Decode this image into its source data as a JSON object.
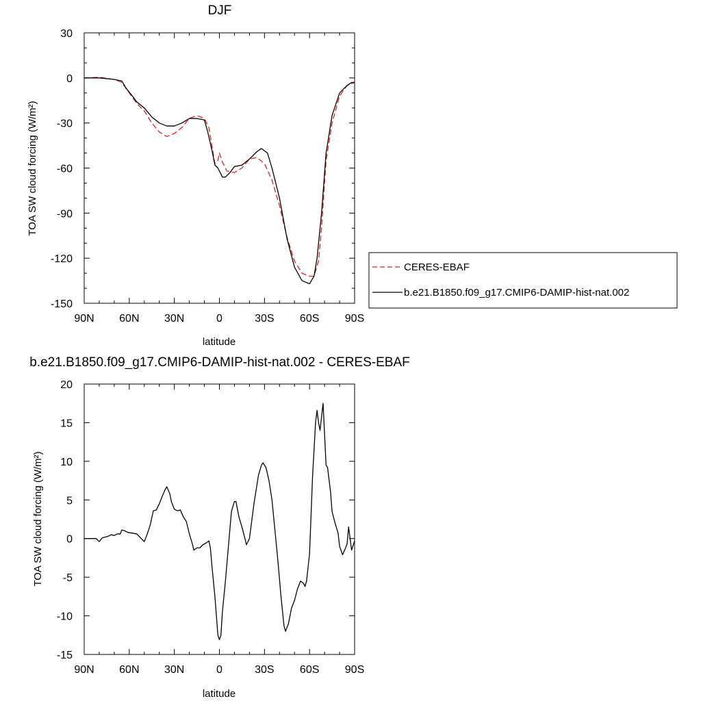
{
  "chart_data": [
    {
      "type": "line",
      "title": "DJF",
      "xlabel": "latitude",
      "ylabel": "TOA SW cloud forcing (W/m²)",
      "xlim": [
        90,
        -90
      ],
      "ylim": [
        -150,
        30
      ],
      "xticks": [
        90,
        60,
        30,
        0,
        -30,
        -60,
        -90
      ],
      "xtick_labels": [
        "90N",
        "60N",
        "30N",
        "0",
        "30S",
        "60S",
        "90S"
      ],
      "yticks": [
        30,
        0,
        -30,
        -60,
        -90,
        -120,
        -150
      ],
      "ytick_labels": [
        "30",
        "0",
        "-30",
        "-60",
        "-90",
        "-120",
        "-150"
      ],
      "grid": false,
      "legend_position": "right",
      "series": [
        {
          "name": "CERES-EBAF",
          "color": "#e41a1c",
          "dash": "dashed",
          "points": [
            [
              90,
              0
            ],
            [
              80,
              0.5
            ],
            [
              75,
              -0.3
            ],
            [
              70,
              -1
            ],
            [
              65,
              -3
            ],
            [
              60,
              -10
            ],
            [
              55,
              -17
            ],
            [
              50,
              -22
            ],
            [
              45,
              -30
            ],
            [
              40,
              -36
            ],
            [
              35,
              -39
            ],
            [
              30,
              -37
            ],
            [
              25,
              -33
            ],
            [
              20,
              -27
            ],
            [
              15,
              -25
            ],
            [
              10,
              -27
            ],
            [
              7,
              -33
            ],
            [
              5,
              -45
            ],
            [
              3,
              -57
            ],
            [
              1,
              -55
            ],
            [
              0,
              -50
            ],
            [
              -2,
              -56
            ],
            [
              -5,
              -62
            ],
            [
              -10,
              -63
            ],
            [
              -15,
              -60
            ],
            [
              -20,
              -54
            ],
            [
              -25,
              -53
            ],
            [
              -30,
              -57
            ],
            [
              -35,
              -68
            ],
            [
              -40,
              -85
            ],
            [
              -45,
              -106
            ],
            [
              -50,
              -122
            ],
            [
              -55,
              -130
            ],
            [
              -60,
              -132
            ],
            [
              -63,
              -132
            ],
            [
              -66,
              -122
            ],
            [
              -68,
              -100
            ],
            [
              -71,
              -55
            ],
            [
              -75,
              -30
            ],
            [
              -80,
              -12
            ],
            [
              -85,
              -5
            ],
            [
              -90,
              -3
            ]
          ]
        },
        {
          "name": "b.e21.B1850.f09_g17.CMIP6-DAMIP-hist-nat.002",
          "color": "#000000",
          "dash": "solid",
          "points": [
            [
              90,
              0
            ],
            [
              80,
              0
            ],
            [
              75,
              -0.5
            ],
            [
              70,
              -1
            ],
            [
              65,
              -2
            ],
            [
              62,
              -7
            ],
            [
              58,
              -12
            ],
            [
              55,
              -16
            ],
            [
              50,
              -20
            ],
            [
              45,
              -26
            ],
            [
              40,
              -30
            ],
            [
              35,
              -32
            ],
            [
              30,
              -32
            ],
            [
              25,
              -30
            ],
            [
              20,
              -27
            ],
            [
              15,
              -27
            ],
            [
              10,
              -28
            ],
            [
              8,
              -35
            ],
            [
              5,
              -48
            ],
            [
              3,
              -58
            ],
            [
              1,
              -60
            ],
            [
              -2,
              -66
            ],
            [
              -4,
              -66
            ],
            [
              -7,
              -63
            ],
            [
              -10,
              -59
            ],
            [
              -15,
              -58
            ],
            [
              -20,
              -54
            ],
            [
              -25,
              -49
            ],
            [
              -28,
              -47
            ],
            [
              -32,
              -50
            ],
            [
              -35,
              -60
            ],
            [
              -40,
              -80
            ],
            [
              -45,
              -107
            ],
            [
              -50,
              -126
            ],
            [
              -55,
              -135
            ],
            [
              -60,
              -137
            ],
            [
              -63,
              -132
            ],
            [
              -65,
              -120
            ],
            [
              -68,
              -90
            ],
            [
              -71,
              -50
            ],
            [
              -75,
              -25
            ],
            [
              -80,
              -10
            ],
            [
              -85,
              -5
            ],
            [
              -88,
              -3
            ],
            [
              -90,
              -3
            ]
          ]
        }
      ]
    },
    {
      "type": "line",
      "title": "b.e21.B1850.f09_g17.CMIP6-DAMIP-hist-nat.002 - CERES-EBAF",
      "xlabel": "latitude",
      "ylabel": "TOA SW cloud forcing (W/m²)",
      "xlim": [
        90,
        -90
      ],
      "ylim": [
        -15,
        20
      ],
      "xticks": [
        90,
        60,
        30,
        0,
        -30,
        -60,
        -90
      ],
      "xtick_labels": [
        "90N",
        "60N",
        "30N",
        "0",
        "30S",
        "60S",
        "90S"
      ],
      "yticks": [
        20,
        15,
        10,
        5,
        0,
        -5,
        -10,
        -15
      ],
      "ytick_labels": [
        "20",
        "15",
        "10",
        "5",
        "0",
        "-5",
        "-10",
        "-15"
      ],
      "grid": false,
      "series": [
        {
          "color": "#000000",
          "dash": "solid",
          "points": [
            [
              90,
              0
            ],
            [
              82,
              0
            ],
            [
              80,
              -0.4
            ],
            [
              78,
              0.1
            ],
            [
              74,
              0.3
            ],
            [
              72,
              0.5
            ],
            [
              70,
              0.4
            ],
            [
              68,
              0.6
            ],
            [
              66,
              0.6
            ],
            [
              65,
              1.1
            ],
            [
              63,
              1.0
            ],
            [
              61,
              0.8
            ],
            [
              58,
              0.7
            ],
            [
              55,
              0.6
            ],
            [
              52,
              0
            ],
            [
              50,
              -0.4
            ],
            [
              48,
              0.6
            ],
            [
              46,
              1.8
            ],
            [
              44,
              3.6
            ],
            [
              42,
              3.7
            ],
            [
              40,
              4.5
            ],
            [
              38,
              5.5
            ],
            [
              36,
              6.4
            ],
            [
              35,
              6.7
            ],
            [
              33,
              5.8
            ],
            [
              32,
              4.8
            ],
            [
              30,
              3.8
            ],
            [
              28,
              3.6
            ],
            [
              26,
              3.7
            ],
            [
              24,
              2.8
            ],
            [
              22,
              2.2
            ],
            [
              20,
              0.6
            ],
            [
              18,
              -0.7
            ],
            [
              17,
              -1.5
            ],
            [
              15,
              -1.2
            ],
            [
              13,
              -1.2
            ],
            [
              11,
              -0.8
            ],
            [
              9,
              -0.6
            ],
            [
              7,
              -0.3
            ],
            [
              6,
              -1.2
            ],
            [
              5,
              -3.5
            ],
            [
              3,
              -7.5
            ],
            [
              1,
              -12.5
            ],
            [
              0,
              -13.1
            ],
            [
              -1,
              -12.5
            ],
            [
              -2,
              -9.5
            ],
            [
              -4,
              -5.5
            ],
            [
              -6,
              -1
            ],
            [
              -8,
              3.5
            ],
            [
              -10,
              4.8
            ],
            [
              -11,
              4.8
            ],
            [
              -13,
              2.8
            ],
            [
              -15,
              1.5
            ],
            [
              -17,
              0
            ],
            [
              -18,
              -0.8
            ],
            [
              -20,
              0
            ],
            [
              -23,
              4.5
            ],
            [
              -26,
              8.2
            ],
            [
              -28,
              9.5
            ],
            [
              -29,
              9.8
            ],
            [
              -31,
              9.2
            ],
            [
              -33,
              7.5
            ],
            [
              -35,
              5
            ],
            [
              -37,
              1
            ],
            [
              -39,
              -3
            ],
            [
              -41,
              -7.5
            ],
            [
              -43,
              -11.3
            ],
            [
              -44,
              -12
            ],
            [
              -46,
              -11
            ],
            [
              -48,
              -9
            ],
            [
              -50,
              -8
            ],
            [
              -52,
              -6.5
            ],
            [
              -54,
              -5.5
            ],
            [
              -56,
              -5.8
            ],
            [
              -57,
              -6.2
            ],
            [
              -58,
              -5.5
            ],
            [
              -60,
              -2
            ],
            [
              -62,
              8
            ],
            [
              -64,
              15
            ],
            [
              -65,
              16.6
            ],
            [
              -66,
              15
            ],
            [
              -67,
              14
            ],
            [
              -69,
              17.5
            ],
            [
              -71,
              9.5
            ],
            [
              -72,
              9.2
            ],
            [
              -74,
              6
            ],
            [
              -75,
              3.5
            ],
            [
              -77,
              2.0
            ],
            [
              -79,
              0.7
            ],
            [
              -80,
              -1
            ],
            [
              -82,
              -2.1
            ],
            [
              -84,
              -1.2
            ],
            [
              -85,
              -0.7
            ],
            [
              -86,
              1.5
            ],
            [
              -88,
              -1.5
            ],
            [
              -90,
              -0.3
            ]
          ]
        }
      ]
    }
  ]
}
